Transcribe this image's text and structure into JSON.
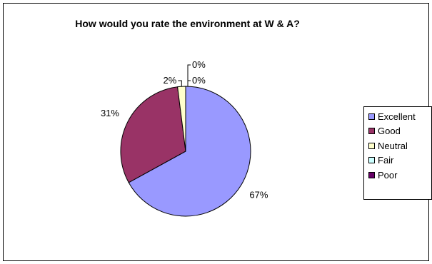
{
  "chart_data": {
    "type": "pie",
    "title": "How would you rate the environment at W & A?",
    "categories": [
      "Excellent",
      "Good",
      "Neutral",
      "Fair",
      "Poor"
    ],
    "values": [
      67,
      31,
      2,
      0,
      0
    ],
    "data_labels": [
      "67%",
      "31%",
      "2%",
      "0%",
      "0%"
    ],
    "colors": [
      "#9999FF",
      "#993366",
      "#FFFFCC",
      "#CCFFFF",
      "#660066"
    ],
    "legend_position": "right"
  }
}
